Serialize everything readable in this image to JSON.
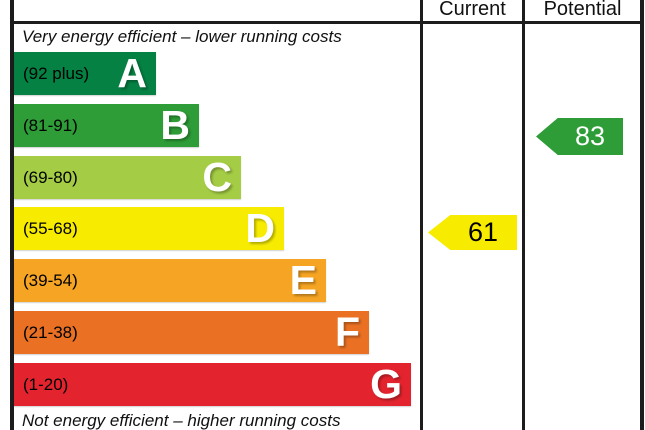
{
  "chart_data": {
    "type": "bar",
    "chart_kind": "epc-energy-efficiency-rating",
    "title": "",
    "header": {
      "current": "Current",
      "potential": "Potential"
    },
    "top_note": "Very energy efficient – lower running costs",
    "bottom_note": "Not energy efficient – higher running costs",
    "bands": [
      {
        "letter": "A",
        "range_label": "(92 plus)",
        "range_min": 92,
        "range_max": 100,
        "color": "#058143"
      },
      {
        "letter": "B",
        "range_label": "(81-91)",
        "range_min": 81,
        "range_max": 91,
        "color": "#2e9c37"
      },
      {
        "letter": "C",
        "range_label": "(69-80)",
        "range_min": 69,
        "range_max": 80,
        "color": "#a4cc45"
      },
      {
        "letter": "D",
        "range_label": "(55-68)",
        "range_min": 55,
        "range_max": 68,
        "color": "#f7ec00"
      },
      {
        "letter": "E",
        "range_label": "(39-54)",
        "range_min": 39,
        "range_max": 54,
        "color": "#f5a423"
      },
      {
        "letter": "F",
        "range_label": "(21-38)",
        "range_min": 21,
        "range_max": 38,
        "color": "#ea7124"
      },
      {
        "letter": "G",
        "range_label": "(1-20)",
        "range_min": 1,
        "range_max": 20,
        "color": "#e3242e"
      }
    ],
    "current": {
      "value": 61,
      "band": "D",
      "arrow_color": "#f7ec00",
      "text_color": "#000000"
    },
    "potential": {
      "value": 83,
      "band": "B",
      "arrow_color": "#2e9c37",
      "text_color": "#ffffff"
    }
  }
}
